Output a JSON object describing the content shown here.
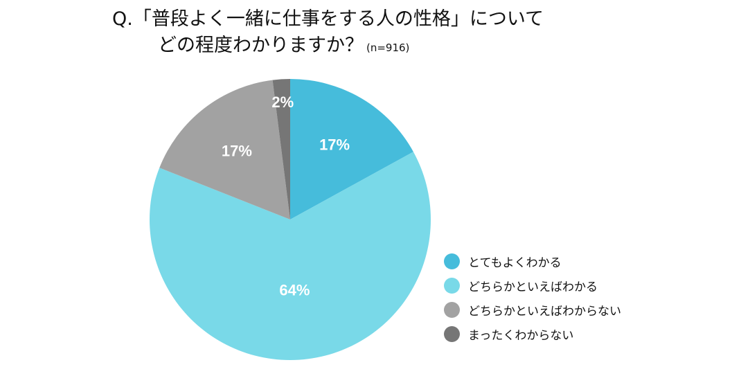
{
  "title": {
    "line1": "Q.「普段よく一緒に仕事をする人の性格」について",
    "line2": "どの程度わかりますか？",
    "n_note": "(n=916)"
  },
  "chart_data": {
    "type": "pie",
    "title": "Q.「普段よく一緒に仕事をする人の性格」について どの程度わかりますか？",
    "n": 916,
    "slices": [
      {
        "label": "とてもよくわかる",
        "value": 17,
        "display": "17%",
        "color": "#46bcdb"
      },
      {
        "label": "どちらかといえばわかる",
        "value": 64,
        "display": "64%",
        "color": "#79d9e8"
      },
      {
        "label": "どちらかといえばわからない",
        "value": 17,
        "display": "17%",
        "color": "#a2a2a2"
      },
      {
        "label": "まったくわからない",
        "value": 2,
        "display": "2%",
        "color": "#767676"
      }
    ],
    "start": "12 o'clock",
    "direction": "clockwise",
    "legend_position": "right",
    "units": "%"
  }
}
